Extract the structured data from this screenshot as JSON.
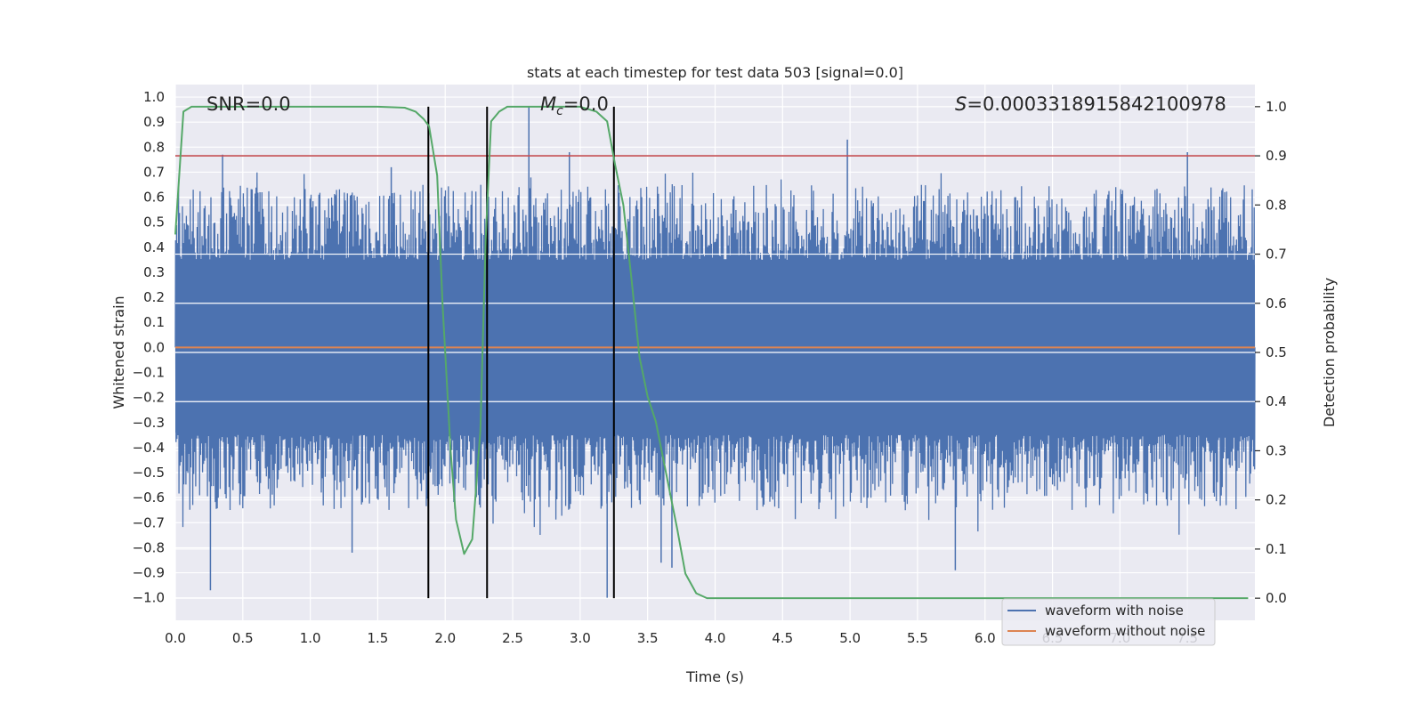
{
  "chart_data": {
    "type": "line",
    "title": "stats at each timestep for test data 503 [signal=0.0]",
    "xlabel": "Time (s)",
    "ylabel": "Whitened strain",
    "y2label": "Detection probability",
    "xlim": [
      0.0,
      8.0
    ],
    "ylim": [
      -1.09,
      1.05
    ],
    "y2lim": [
      -0.045,
      1.045
    ],
    "xticks": [
      "0.0",
      "0.5",
      "1.0",
      "1.5",
      "2.0",
      "2.5",
      "3.0",
      "3.5",
      "4.0",
      "4.5",
      "5.0",
      "5.5",
      "6.0",
      "6.5",
      "7.0",
      "7.5"
    ],
    "yticks": [
      "1.0",
      "0.9",
      "0.8",
      "0.7",
      "0.6",
      "0.5",
      "0.4",
      "0.3",
      "0.2",
      "0.1",
      "0.0",
      "−0.1",
      "−0.2",
      "−0.3",
      "−0.4",
      "−0.5",
      "−0.6",
      "−0.7",
      "−0.8",
      "−0.9",
      "−1.0"
    ],
    "y2ticks": [
      "1.0",
      "0.9",
      "0.8",
      "0.7",
      "0.6",
      "0.5",
      "0.4",
      "0.3",
      "0.2",
      "0.1",
      "0.0"
    ],
    "annotations": {
      "snr": "SNR=0.0",
      "mc_symbol": "M",
      "mc_sub": "c",
      "mc_value": "=0.0",
      "s_symbol": "S",
      "s_value": "=0.0003318915842100978"
    },
    "threshold": {
      "value": 0.9,
      "axis": "y2",
      "color": "#c44e52"
    },
    "vertical_markers": [
      1.875,
      2.31,
      3.25
    ],
    "series": [
      {
        "name": "waveform with noise",
        "color": "#4c72b0",
        "kind": "noise",
        "duration": 8.0,
        "typical_peak": [
          0.35,
          0.65
        ],
        "extreme_peaks": [
          {
            "t": 0.26,
            "v": -0.97
          },
          {
            "t": 0.35,
            "v": 0.77
          },
          {
            "t": 1.31,
            "v": -0.82
          },
          {
            "t": 1.6,
            "v": 0.72
          },
          {
            "t": 2.62,
            "v": 0.96
          },
          {
            "t": 3.2,
            "v": -1.0
          },
          {
            "t": 3.6,
            "v": -0.86
          },
          {
            "t": 4.98,
            "v": 0.83
          },
          {
            "t": 5.78,
            "v": -0.89
          },
          {
            "t": 7.5,
            "v": 0.78
          },
          {
            "t": 3.68,
            "v": -0.88
          },
          {
            "t": 2.92,
            "v": 0.78
          }
        ]
      },
      {
        "name": "waveform without noise",
        "color": "#dd8452",
        "kind": "line",
        "x": [
          0.0,
          8.0
        ],
        "y": [
          0.0,
          0.0
        ]
      },
      {
        "name": "detection probability",
        "color": "#55a868",
        "kind": "line",
        "axis": "y2",
        "x": [
          0.0,
          0.06,
          0.12,
          0.5,
          1.0,
          1.5,
          1.7,
          1.78,
          1.84,
          1.88,
          1.94,
          1.98,
          2.04,
          2.08,
          2.14,
          2.2,
          2.26,
          2.3,
          2.34,
          2.4,
          2.46,
          2.6,
          3.0,
          3.12,
          3.2,
          3.26,
          3.32,
          3.38,
          3.44,
          3.5,
          3.56,
          3.64,
          3.72,
          3.78,
          3.86,
          3.94,
          4.5,
          6.0,
          7.95
        ],
        "y": [
          0.74,
          0.99,
          1.0,
          1.0,
          1.0,
          1.0,
          0.998,
          0.99,
          0.975,
          0.96,
          0.86,
          0.6,
          0.3,
          0.16,
          0.09,
          0.12,
          0.34,
          0.73,
          0.97,
          0.99,
          1.0,
          1.0,
          1.0,
          0.99,
          0.97,
          0.88,
          0.8,
          0.65,
          0.49,
          0.41,
          0.36,
          0.25,
          0.14,
          0.05,
          0.01,
          0.0,
          0.0,
          0.0,
          0.0
        ]
      }
    ],
    "legend": {
      "placement": "lower-right",
      "entries": [
        {
          "label": "waveform with noise",
          "color": "#4c72b0"
        },
        {
          "label": "waveform without noise",
          "color": "#dd8452"
        }
      ]
    },
    "colors": {
      "background": "#eaeaf2",
      "grid": "#ffffff",
      "vline": "#000000",
      "text": "#262626"
    }
  }
}
